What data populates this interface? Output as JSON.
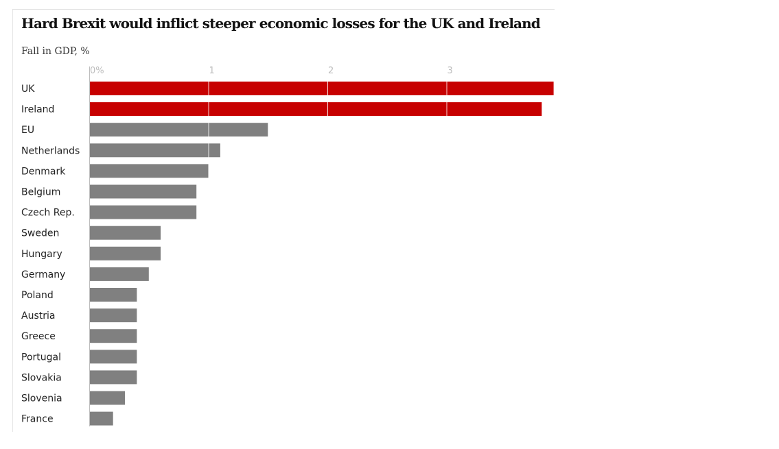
{
  "chart_data": {
    "type": "bar",
    "orientation": "horizontal",
    "title": "Hard Brexit would inflict steeper economic losses for the UK and Ireland",
    "subtitle": "Fall in GDP, %",
    "xlim": [
      0,
      3.9
    ],
    "ticks": [
      {
        "value": 0,
        "label": "0%"
      },
      {
        "value": 1,
        "label": "1"
      },
      {
        "value": 2,
        "label": "2"
      },
      {
        "value": 3,
        "label": "3"
      }
    ],
    "grid": true,
    "highlight_color": "#c70000",
    "default_color": "#808080",
    "categories": [
      "UK",
      "Ireland",
      "EU",
      "Netherlands",
      "Denmark",
      "Belgium",
      "Czech Rep.",
      "Sweden",
      "Hungary",
      "Germany",
      "Poland",
      "Austria",
      "Greece",
      "Portugal",
      "Slovakia",
      "Slovenia",
      "France"
    ],
    "values": [
      3.9,
      3.8,
      1.5,
      1.1,
      1.0,
      0.9,
      0.9,
      0.6,
      0.6,
      0.5,
      0.4,
      0.4,
      0.4,
      0.4,
      0.4,
      0.3,
      0.2
    ],
    "highlighted": [
      "UK",
      "Ireland"
    ]
  }
}
